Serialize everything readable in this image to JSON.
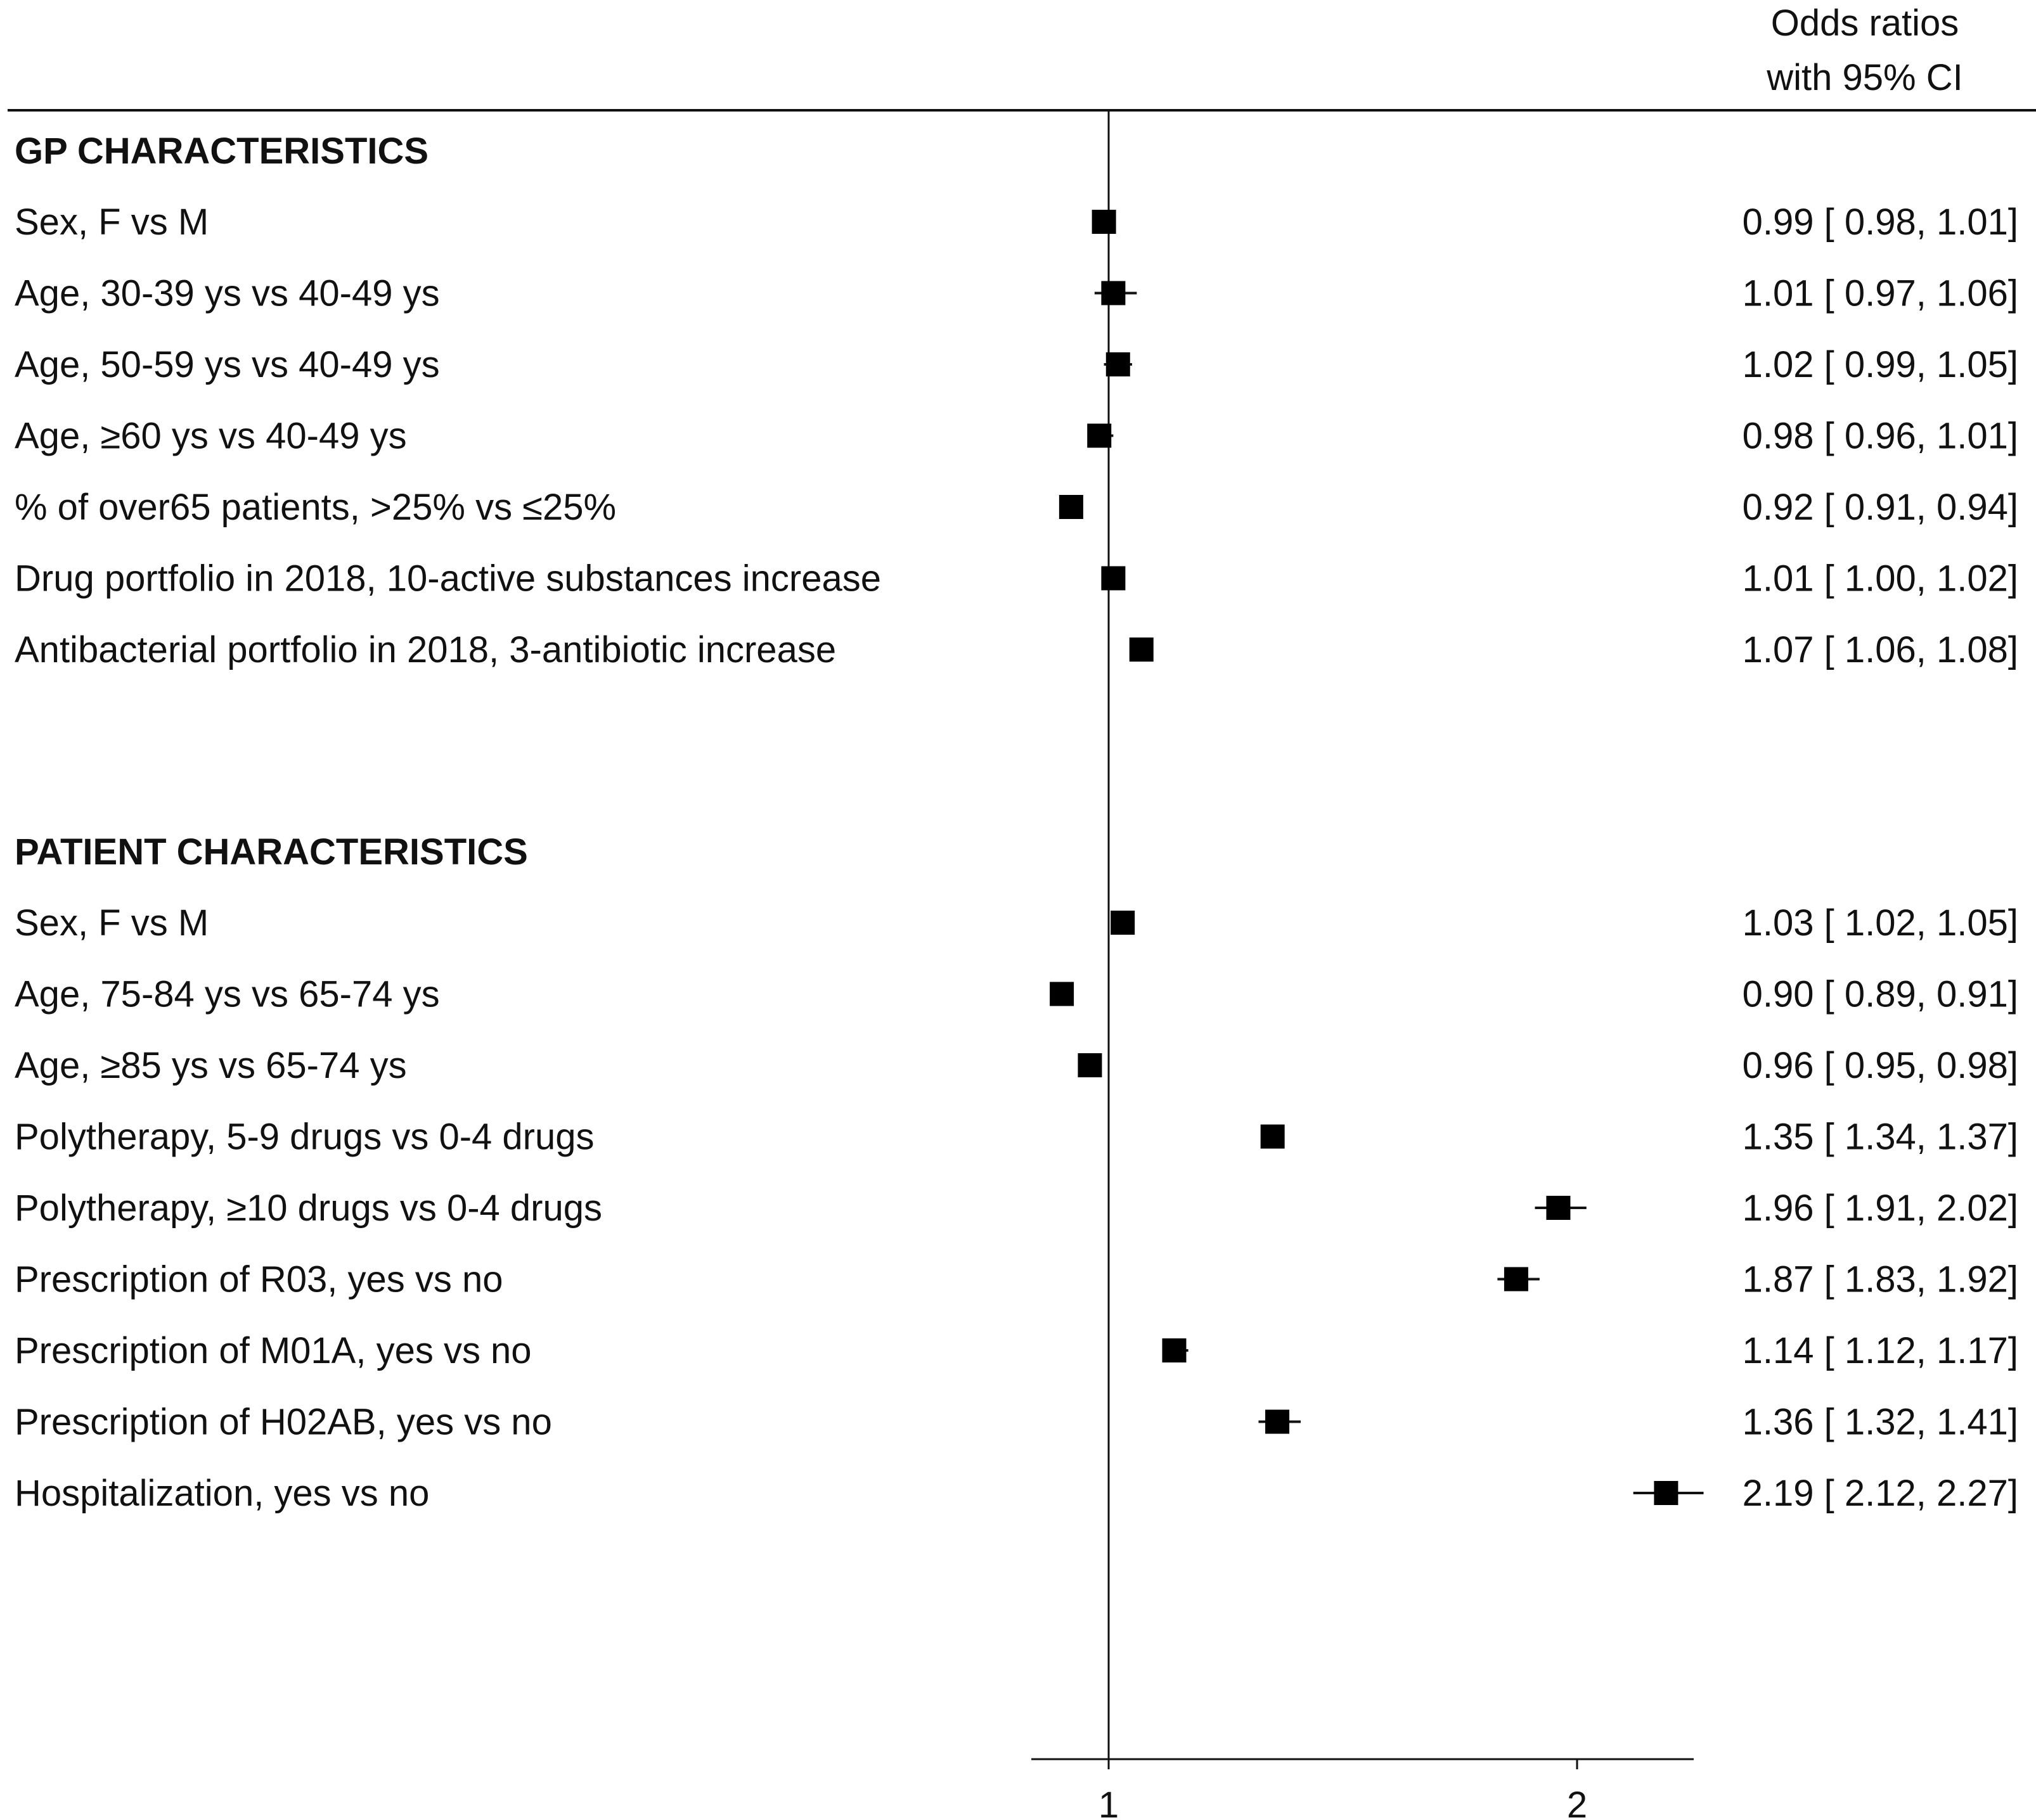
{
  "chart_data": {
    "type": "forest",
    "header": [
      "Odds ratios",
      "with 95% CI"
    ],
    "x_ticks": [
      1,
      2
    ],
    "xlim": [
      0.84,
      2.25
    ],
    "reference_line": 1,
    "colors": {
      "marker": "#000000",
      "lines": "#111111"
    },
    "sections": [
      {
        "title": "GP CHARACTERISTICS",
        "rows": [
          {
            "label": "Sex, F vs M",
            "or": 0.99,
            "lo": 0.98,
            "hi": 1.01,
            "text": "0.99 [ 0.98,  1.01]"
          },
          {
            "label": "Age, 30-39 ys vs 40-49 ys",
            "or": 1.01,
            "lo": 0.97,
            "hi": 1.06,
            "text": "1.01 [ 0.97,  1.06]"
          },
          {
            "label": "Age, 50-59 ys vs 40-49 ys",
            "or": 1.02,
            "lo": 0.99,
            "hi": 1.05,
            "text": "1.02 [ 0.99,  1.05]"
          },
          {
            "label": "Age, ≥60 ys vs 40-49 ys",
            "or": 0.98,
            "lo": 0.96,
            "hi": 1.01,
            "text": "0.98 [ 0.96,  1.01]"
          },
          {
            "label": "% of over65 patients, >25% vs ≤25%",
            "or": 0.92,
            "lo": 0.91,
            "hi": 0.94,
            "text": "0.92 [ 0.91,  0.94]"
          },
          {
            "label": "Drug portfolio in 2018, 10-active substances increase",
            "or": 1.01,
            "lo": 1.0,
            "hi": 1.02,
            "text": "1.01 [ 1.00,  1.02]"
          },
          {
            "label": "Antibacterial portfolio in 2018, 3-antibiotic increase",
            "or": 1.07,
            "lo": 1.06,
            "hi": 1.08,
            "text": "1.07 [ 1.06,  1.08]"
          }
        ]
      },
      {
        "title": "PATIENT CHARACTERISTICS",
        "rows": [
          {
            "label": "Sex, F vs M",
            "or": 1.03,
            "lo": 1.02,
            "hi": 1.05,
            "text": "1.03 [ 1.02,  1.05]"
          },
          {
            "label": "Age, 75-84 ys vs 65-74 ys",
            "or": 0.9,
            "lo": 0.89,
            "hi": 0.91,
            "text": "0.90 [ 0.89,  0.91]"
          },
          {
            "label": "Age, ≥85 ys vs 65-74 ys",
            "or": 0.96,
            "lo": 0.95,
            "hi": 0.98,
            "text": "0.96 [ 0.95,  0.98]"
          },
          {
            "label": "Polytherapy, 5-9 drugs vs 0-4 drugs",
            "or": 1.35,
            "lo": 1.34,
            "hi": 1.37,
            "text": "1.35 [ 1.34,  1.37]"
          },
          {
            "label": "Polytherapy, ≥10 drugs vs 0-4 drugs",
            "or": 1.96,
            "lo": 1.91,
            "hi": 2.02,
            "text": "1.96 [ 1.91,  2.02]"
          },
          {
            "label": "Prescription of R03, yes vs no",
            "or": 1.87,
            "lo": 1.83,
            "hi": 1.92,
            "text": "1.87 [ 1.83,  1.92]"
          },
          {
            "label": "Prescription of M01A, yes vs no",
            "or": 1.14,
            "lo": 1.12,
            "hi": 1.17,
            "text": "1.14 [ 1.12,  1.17]"
          },
          {
            "label": "Prescription of H02AB, yes vs no",
            "or": 1.36,
            "lo": 1.32,
            "hi": 1.41,
            "text": "1.36 [ 1.32,  1.41]"
          },
          {
            "label": "Hospitalization, yes vs no",
            "or": 2.19,
            "lo": 2.12,
            "hi": 2.27,
            "text": "2.19 [ 2.12,  2.27]"
          }
        ]
      }
    ]
  }
}
